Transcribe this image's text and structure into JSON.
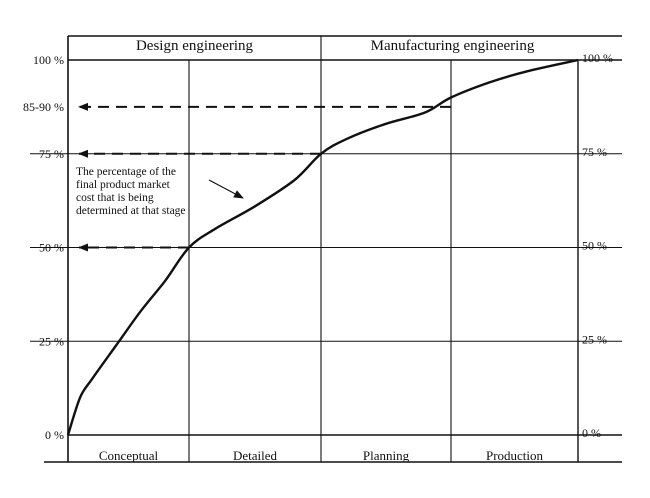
{
  "chart_data": {
    "type": "line",
    "title": "",
    "phases": [
      "Design engineering",
      "Manufacturing engineering"
    ],
    "stages": [
      "Conceptual",
      "Detailed",
      "Planning",
      "Production"
    ],
    "stage_boundaries": [
      0,
      1,
      2,
      3,
      4
    ],
    "phase_boundary": 2,
    "ylim": [
      0,
      100
    ],
    "y_ticks": [
      {
        "value": 0,
        "left": "0 %",
        "right": "0 %"
      },
      {
        "value": 25,
        "left": "25 %",
        "right": "25 %"
      },
      {
        "value": 50,
        "left": "50 %",
        "right": "50 %"
      },
      {
        "value": 75,
        "left": "75 %",
        "right": "75 %"
      },
      {
        "value": 87.5,
        "left": "85-90 %",
        "right": ""
      },
      {
        "value": 100,
        "left": "100 %",
        "right": "100 %"
      }
    ],
    "series": [
      {
        "x": [
          0,
          0.1,
          0.2,
          0.4,
          0.6,
          0.8,
          1.0,
          1.2,
          1.5,
          1.8,
          2.0,
          2.2,
          2.5,
          2.8,
          3.0,
          3.3,
          3.6,
          4.0
        ],
        "y": [
          0,
          10,
          15,
          24,
          33,
          41,
          50,
          55,
          61,
          68,
          75,
          79,
          83,
          86,
          90,
          94,
          97,
          100
        ]
      }
    ],
    "reference_lines": [
      {
        "y": 50,
        "x_end": 1
      },
      {
        "y": 75,
        "x_end": 2
      },
      {
        "y": 87.5,
        "x_end": 3
      }
    ],
    "annotation": {
      "lines": [
        "The percentage of the",
        "final product market",
        "cost that is being",
        "determined at that stage"
      ]
    }
  }
}
